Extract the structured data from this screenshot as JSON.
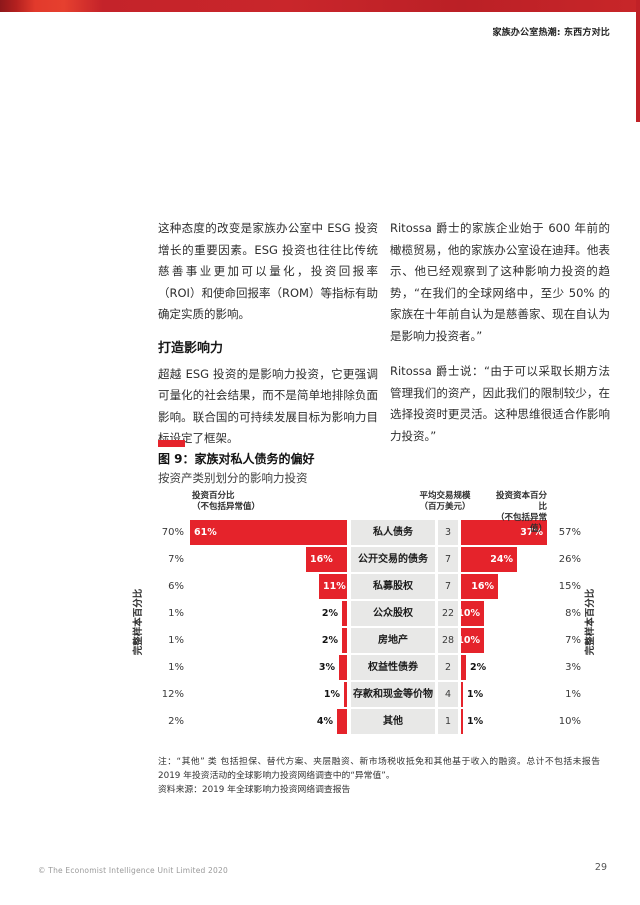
{
  "page": {
    "running_head": "家族办公室热潮: 东西方对比",
    "footer_copyright": "© The Economist Intelligence Unit Limited 2020",
    "page_number": "29"
  },
  "article": {
    "left_column": {
      "p1": "这种态度的改变是家族办公室中 ESG 投资增长的重要因素。ESG 投资也往往比传统慈善事业更加可以量化，投资回报率（ROI）和使命回报率（ROM）等指标有助确定实质的影响。",
      "heading": "打造影响力",
      "p2": "超越 ESG 投资的是影响力投资，它更强调可量化的社会结果，而不是简单地排除负面影响。联合国的可持续发展目标为影响力目标设定了框架。"
    },
    "right_column": {
      "p1": "Ritossa 爵士的家族企业始于 600 年前的橄榄贸易，他的家族办公室设在迪拜。他表示、他已经观察到了这种影响力投资的趋势，“在我们的全球网络中，至少 50% 的家族在十年前自认为是慈善家、现在自认为是影响力投资者。”",
      "p2": "Ritossa 爵士说：“由于可以采取长期方法管理我们的资产，因此我们的限制较少，在选择投资时更灵活。这种思维很适合作影响力投资。”"
    }
  },
  "figure": {
    "title": "图 9：家族对私人债务的偏好",
    "subtitle": "按资产类别划分的影响力投资",
    "header_left": "投资百分比\n（不包括异常值）",
    "header_mid": "平均交易规模\n（百万美元）",
    "header_right": "投资资本百分比\n（不包括异常值）",
    "axis_left": "完整样本百分比",
    "axis_right": "完整样本百分比",
    "note": "注：“其他” 类  包括担保、替代方案、夹层融资、新市场税收抵免和其他基于收入的融资。总计不包括未报告 2019 年投资活动的全球影响力投资网络调查中的“异常值”。",
    "source": "资料来源：2019 年全球影响力投资网络调查报告"
  },
  "chart_data": {
    "type": "bar",
    "title": "图 9：家族对私人债务的偏好",
    "subtitle": "按资产类别划分的影响力投资",
    "layout": "horizontal diverging bar table, red bars, gray category blocks",
    "bar_color": "#e5232b",
    "categories": [
      "私人债务",
      "公开交易的债务",
      "私募股权",
      "公众股权",
      "房地产",
      "权益性债券",
      "存款和现金等价物",
      "其他"
    ],
    "series": [
      {
        "name": "完整样本百分比（左轴）",
        "unit": "%",
        "values": [
          70,
          7,
          6,
          1,
          1,
          1,
          12,
          2
        ]
      },
      {
        "name": "投资百分比（不包括异常值）",
        "unit": "%",
        "values": [
          61,
          16,
          11,
          2,
          2,
          3,
          1,
          4
        ]
      },
      {
        "name": "平均交易规模（百万美元）",
        "unit": "百万美元",
        "values": [
          3,
          7,
          7,
          22,
          28,
          2,
          4,
          1
        ]
      },
      {
        "name": "投资资本百分比（不包括异常值）",
        "unit": "%",
        "values": [
          37,
          24,
          16,
          10,
          10,
          2,
          1,
          1
        ]
      },
      {
        "name": "完整样本百分比（右轴）",
        "unit": "%",
        "values": [
          57,
          26,
          15,
          8,
          7,
          3,
          1,
          10
        ]
      }
    ],
    "left_bar_axis_max": 61,
    "right_bar_axis_max": 37
  }
}
